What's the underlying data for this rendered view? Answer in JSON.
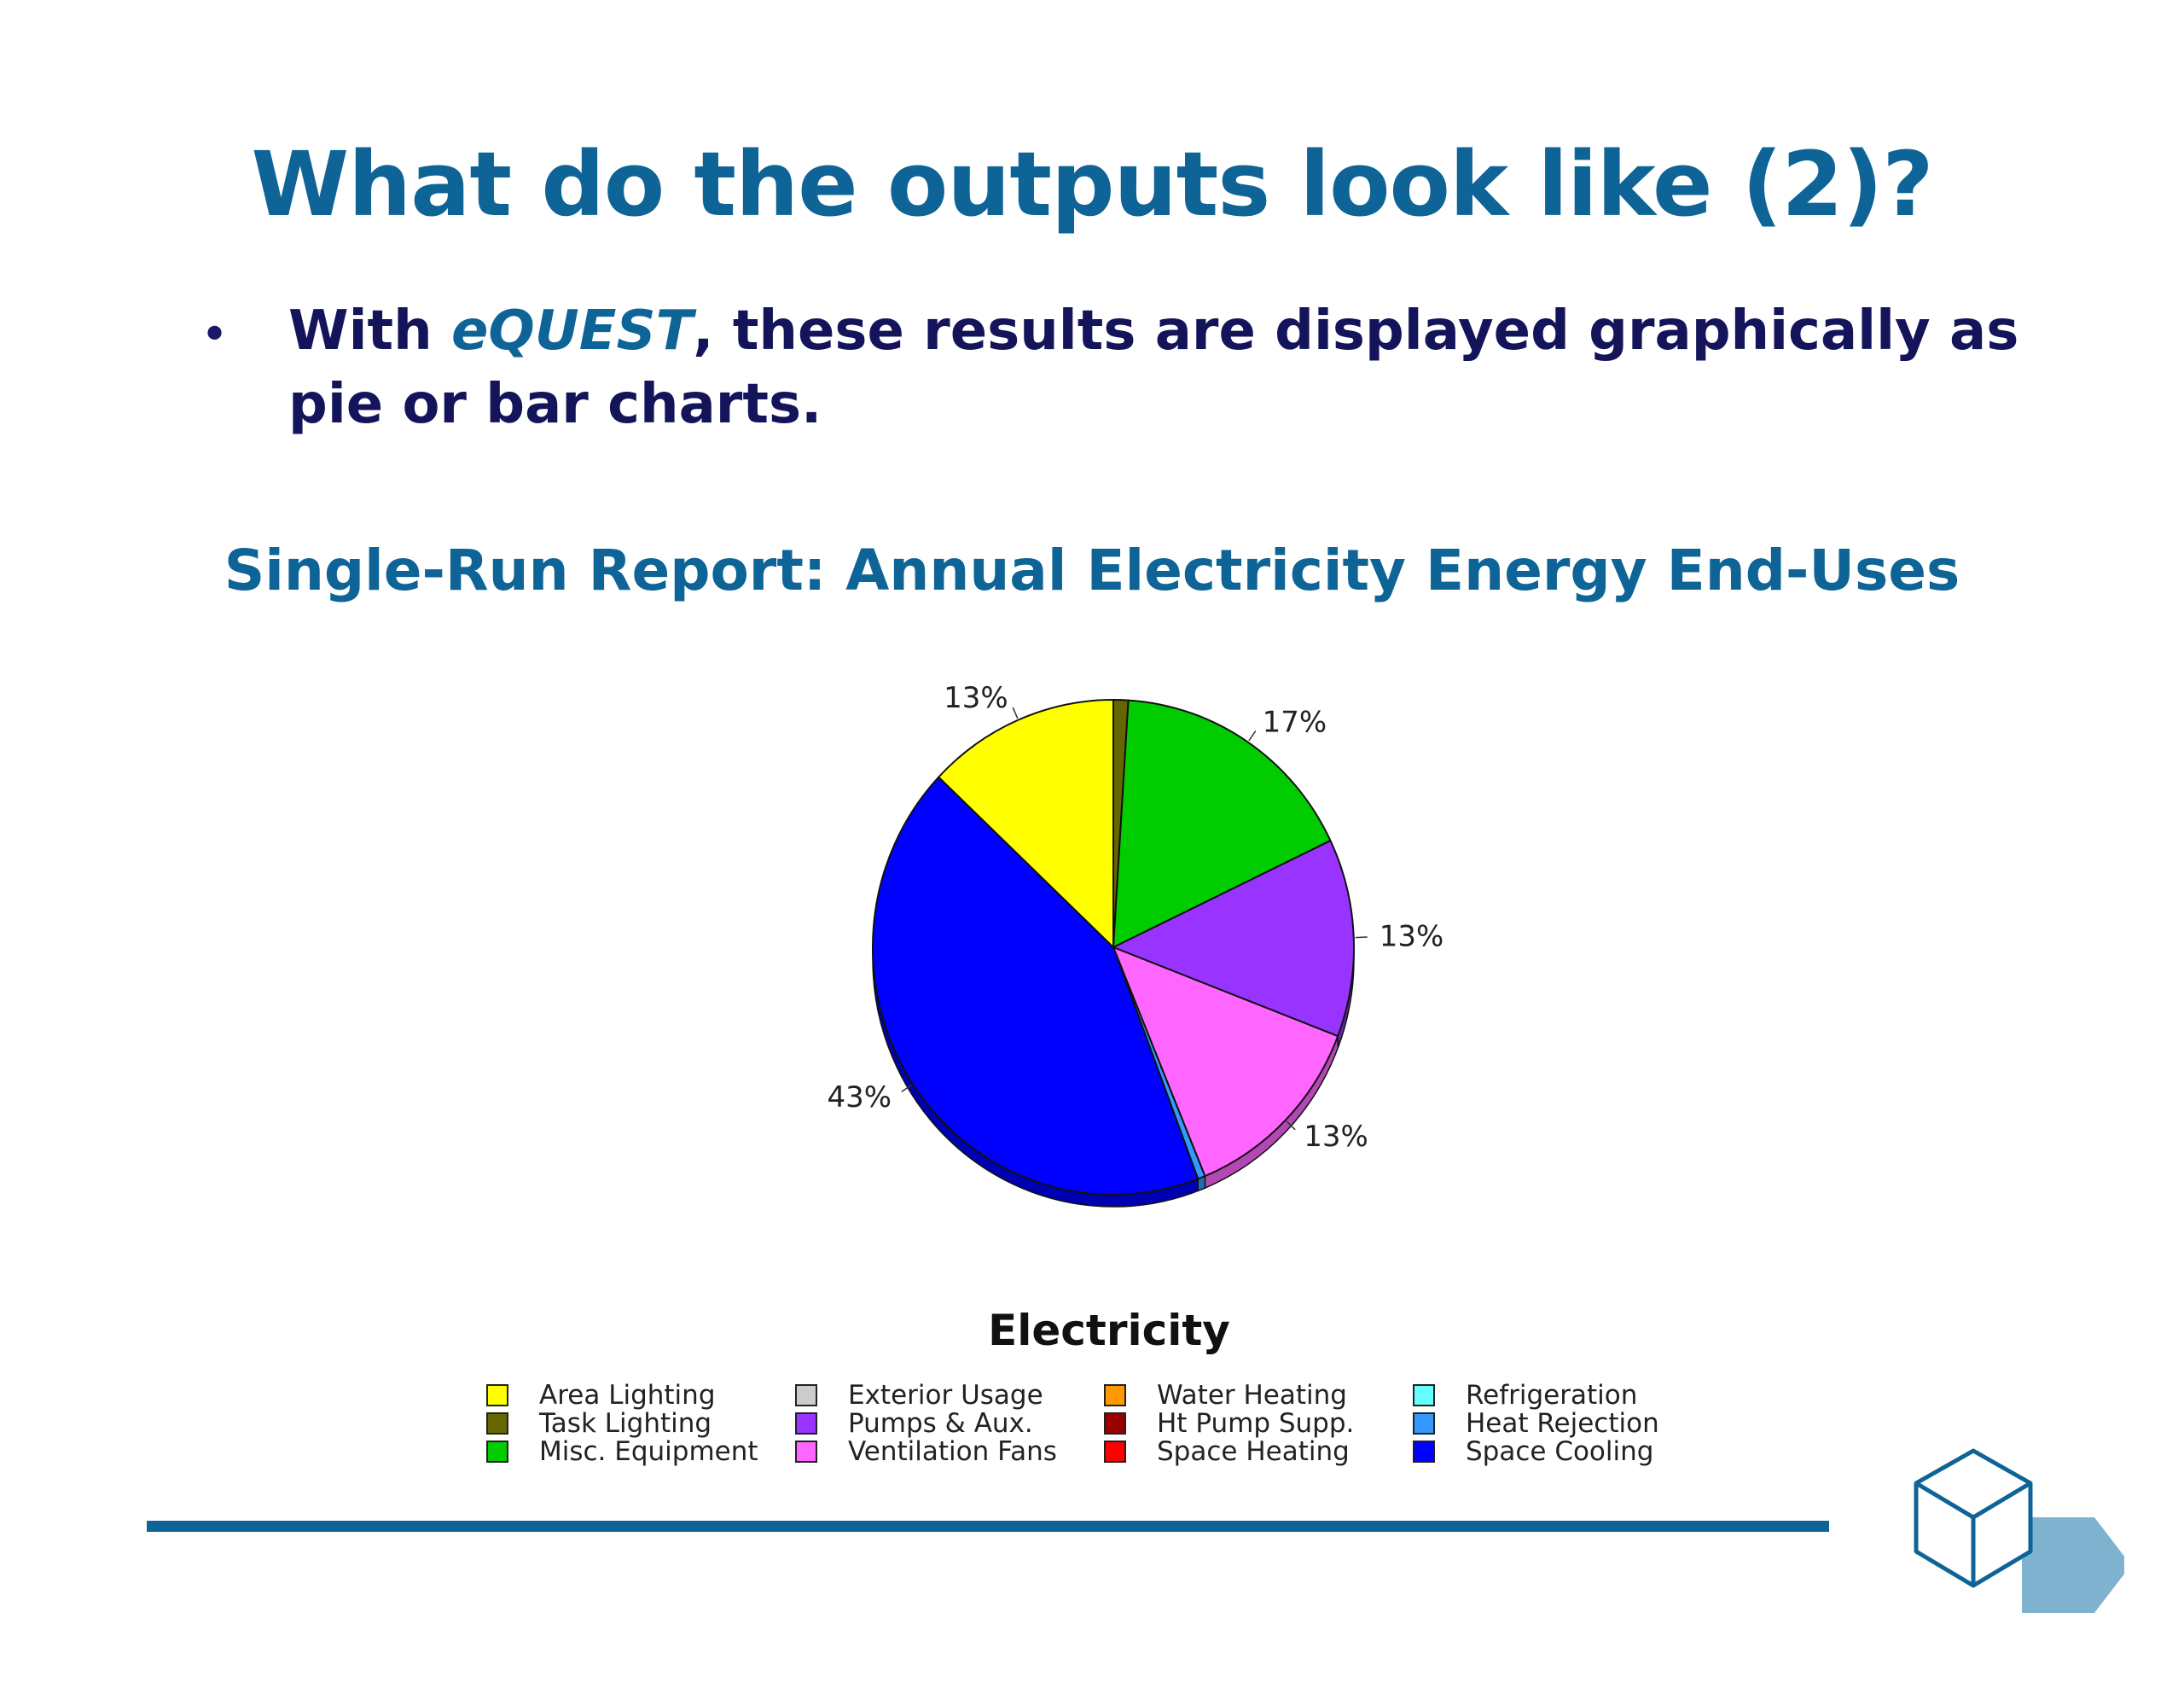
{
  "slide": {
    "title": "What do the outputs look like (2)?",
    "bullet": {
      "prefix": "With ",
      "emphasis": "eQUEST",
      "suffix": ", these results are displayed graphically as pie or bar charts."
    }
  },
  "chart_data": {
    "type": "pie",
    "title": "Single-Run Report: Annual Electricity Energy End-Uses",
    "legend_title": "Electricity",
    "legend_placement": "bottom",
    "slices": [
      {
        "name": "Task Lighting",
        "value": 1,
        "color": "#666600",
        "label": ""
      },
      {
        "name": "Misc. Equipment",
        "value": 17,
        "color": "#00cc00",
        "label": "17%"
      },
      {
        "name": "Pumps & Aux.",
        "value": 13,
        "color": "#9933ff",
        "label": "13%"
      },
      {
        "name": "Ventilation Fans",
        "value": 13,
        "color": "#ff66ff",
        "label": "13%"
      },
      {
        "name": "Heat Rejection",
        "value": 0.5,
        "color": "#3399ff",
        "label": ""
      },
      {
        "name": "Space Cooling",
        "value": 43,
        "color": "#0000ff",
        "label": "43%"
      },
      {
        "name": "Area Lighting",
        "value": 13,
        "color": "#ffff00",
        "label": "13%"
      }
    ],
    "legend": [
      {
        "name": "Area Lighting",
        "color": "#ffff00"
      },
      {
        "name": "Exterior Usage",
        "color": "#cccccc"
      },
      {
        "name": "Water Heating",
        "color": "#ff9900"
      },
      {
        "name": "Refrigeration",
        "color": "#66ffff"
      },
      {
        "name": "Task Lighting",
        "color": "#666600"
      },
      {
        "name": "Pumps & Aux.",
        "color": "#9933ff"
      },
      {
        "name": "Ht Pump Supp.",
        "color": "#990000"
      },
      {
        "name": "Heat Rejection",
        "color": "#3399ff"
      },
      {
        "name": "Misc. Equipment",
        "color": "#00cc00"
      },
      {
        "name": "Ventilation Fans",
        "color": "#ff66ff"
      },
      {
        "name": "Space Heating",
        "color": "#ff0000"
      },
      {
        "name": "Space Cooling",
        "color": "#0000ff"
      }
    ]
  },
  "colors": {
    "title_blue": "#0e6496",
    "bullet_navy": "#14145a",
    "footer_rule": "#0e6496",
    "logo_fill": "#7fb2cf"
  }
}
